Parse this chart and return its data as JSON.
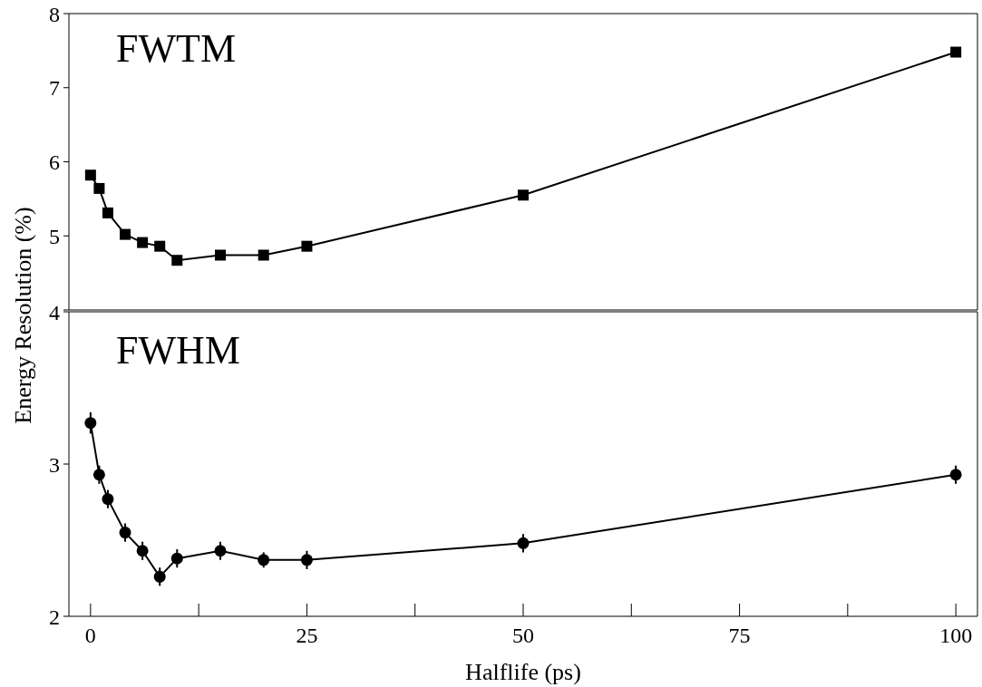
{
  "chart_data": [
    {
      "type": "line",
      "ylabel": "Energy Resolution (%)",
      "annotations": [
        "FWTM"
      ],
      "x": [
        0,
        1,
        2,
        4,
        6,
        8,
        10,
        15,
        20,
        25,
        50,
        100
      ],
      "values": [
        5.82,
        5.64,
        5.31,
        5.02,
        4.91,
        4.86,
        4.67,
        4.74,
        4.74,
        4.86,
        5.55,
        7.48
      ],
      "color": "#000000",
      "marker": "square",
      "line_style": "solid",
      "xlim": [
        -2.5,
        102.5
      ],
      "xticks": [
        0,
        {
          "value": 12.5,
          "label": null
        },
        25,
        {
          "value": 37.5,
          "label": null
        },
        50,
        {
          "value": 62.5,
          "label": null
        },
        75,
        {
          "value": 87.5,
          "label": null
        },
        100
      ],
      "ylim": [
        4,
        8
      ],
      "yticks": [
        {
          "value": 4,
          "label": null
        },
        5,
        6,
        7,
        8
      ],
      "tick_labels": "y",
      "grid": false
    },
    {
      "type": "line",
      "xlabel": "Halflife (ps)",
      "annotations": [
        "FWHM"
      ],
      "x": [
        0,
        1,
        2,
        4,
        6,
        8,
        10,
        15,
        20,
        25,
        50,
        100
      ],
      "values": [
        3.27,
        2.93,
        2.77,
        2.55,
        2.43,
        2.26,
        2.38,
        2.43,
        2.37,
        2.37,
        2.48,
        2.93
      ],
      "errors": [
        0.07,
        0.06,
        0.06,
        0.06,
        0.06,
        0.06,
        0.06,
        0.06,
        0.05,
        0.06,
        0.06,
        0.06
      ],
      "color": "#000000",
      "marker": "circle",
      "line_style": "solid",
      "xlim": [
        -2.5,
        102.5
      ],
      "xticks": [
        0,
        {
          "value": 12.5,
          "label": null
        },
        25,
        {
          "value": 37.5,
          "label": null
        },
        50,
        {
          "value": 62.5,
          "label": null
        },
        75,
        {
          "value": 87.5,
          "label": null
        },
        100
      ],
      "ylim": [
        2,
        4
      ],
      "yticks": [
        2,
        3,
        4
      ],
      "grid": false
    }
  ]
}
